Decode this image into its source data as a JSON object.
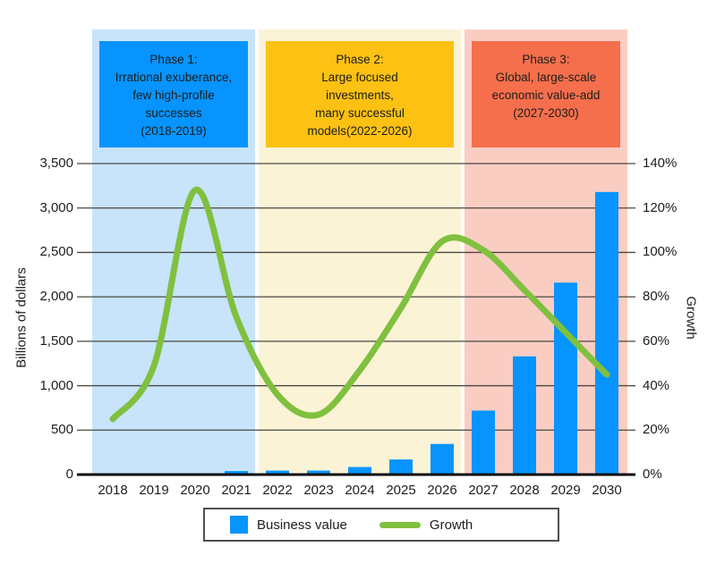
{
  "chart_data": {
    "type": "bar",
    "subtype": "combo-bar-line",
    "categories": [
      "2018",
      "2019",
      "2020",
      "2021",
      "2022",
      "2023",
      "2024",
      "2025",
      "2026",
      "2027",
      "2028",
      "2029",
      "2030"
    ],
    "series": [
      {
        "name": "Business value",
        "type": "bar",
        "axis": "left",
        "color": "#0794FE",
        "values": [
          0,
          0,
          0,
          40,
          45,
          45,
          85,
          170,
          345,
          720,
          1330,
          2160,
          3180
        ]
      },
      {
        "name": "Growth",
        "type": "line",
        "axis": "right",
        "color": "#80C03F",
        "values": [
          25,
          49,
          128,
          71,
          36,
          27,
          47,
          75,
          105,
          101,
          83,
          64,
          45
        ]
      }
    ],
    "left_axis": {
      "label": "Billions of dollars",
      "min": 0,
      "max": 3500,
      "tick_step": 500,
      "tick_labels": [
        "0",
        "500",
        "1,000",
        "1,500",
        "2,000",
        "2,500",
        "3,000",
        "3,500"
      ]
    },
    "right_axis": {
      "label": "Growth",
      "min": 0,
      "max": 140,
      "tick_step": 20,
      "tick_labels": [
        "0%",
        "20%",
        "40%",
        "60%",
        "80%",
        "100%",
        "120%",
        "140%"
      ]
    },
    "grid": true,
    "legend_position": "bottom",
    "title": ""
  },
  "phases": [
    {
      "label": "Phase 1:\nIrrational exuberance,\nfew high-profile\nsuccesses\n(2018-2019)",
      "band_start_year": "2018",
      "band_end_year": "2021",
      "band_color": "#C7E4FB",
      "box_color": "#0794FE"
    },
    {
      "label": "Phase 2:\nLarge focused\ninvestments,\nmany successful\nmodels(2022-2026)",
      "band_start_year": "2022",
      "band_end_year": "2026",
      "band_color": "#FBF3D6",
      "box_color": "#FCC113"
    },
    {
      "label": "Phase 3:\nGlobal, large-scale\neconomic value-add\n(2027-2030)",
      "band_start_year": "2027",
      "band_end_year": "2030",
      "band_color": "#FACDC3",
      "box_color": "#F56F4C"
    }
  ],
  "legend": {
    "items": [
      {
        "label": "Business value",
        "swatch": "square",
        "color": "#0794FE"
      },
      {
        "label": "Growth",
        "swatch": "line",
        "color": "#80C03F"
      }
    ]
  },
  "colors": {
    "gridline": "#4A4742",
    "axis_line": "#111111",
    "text": "#1D1D1B",
    "background": "#FFFFFF"
  }
}
